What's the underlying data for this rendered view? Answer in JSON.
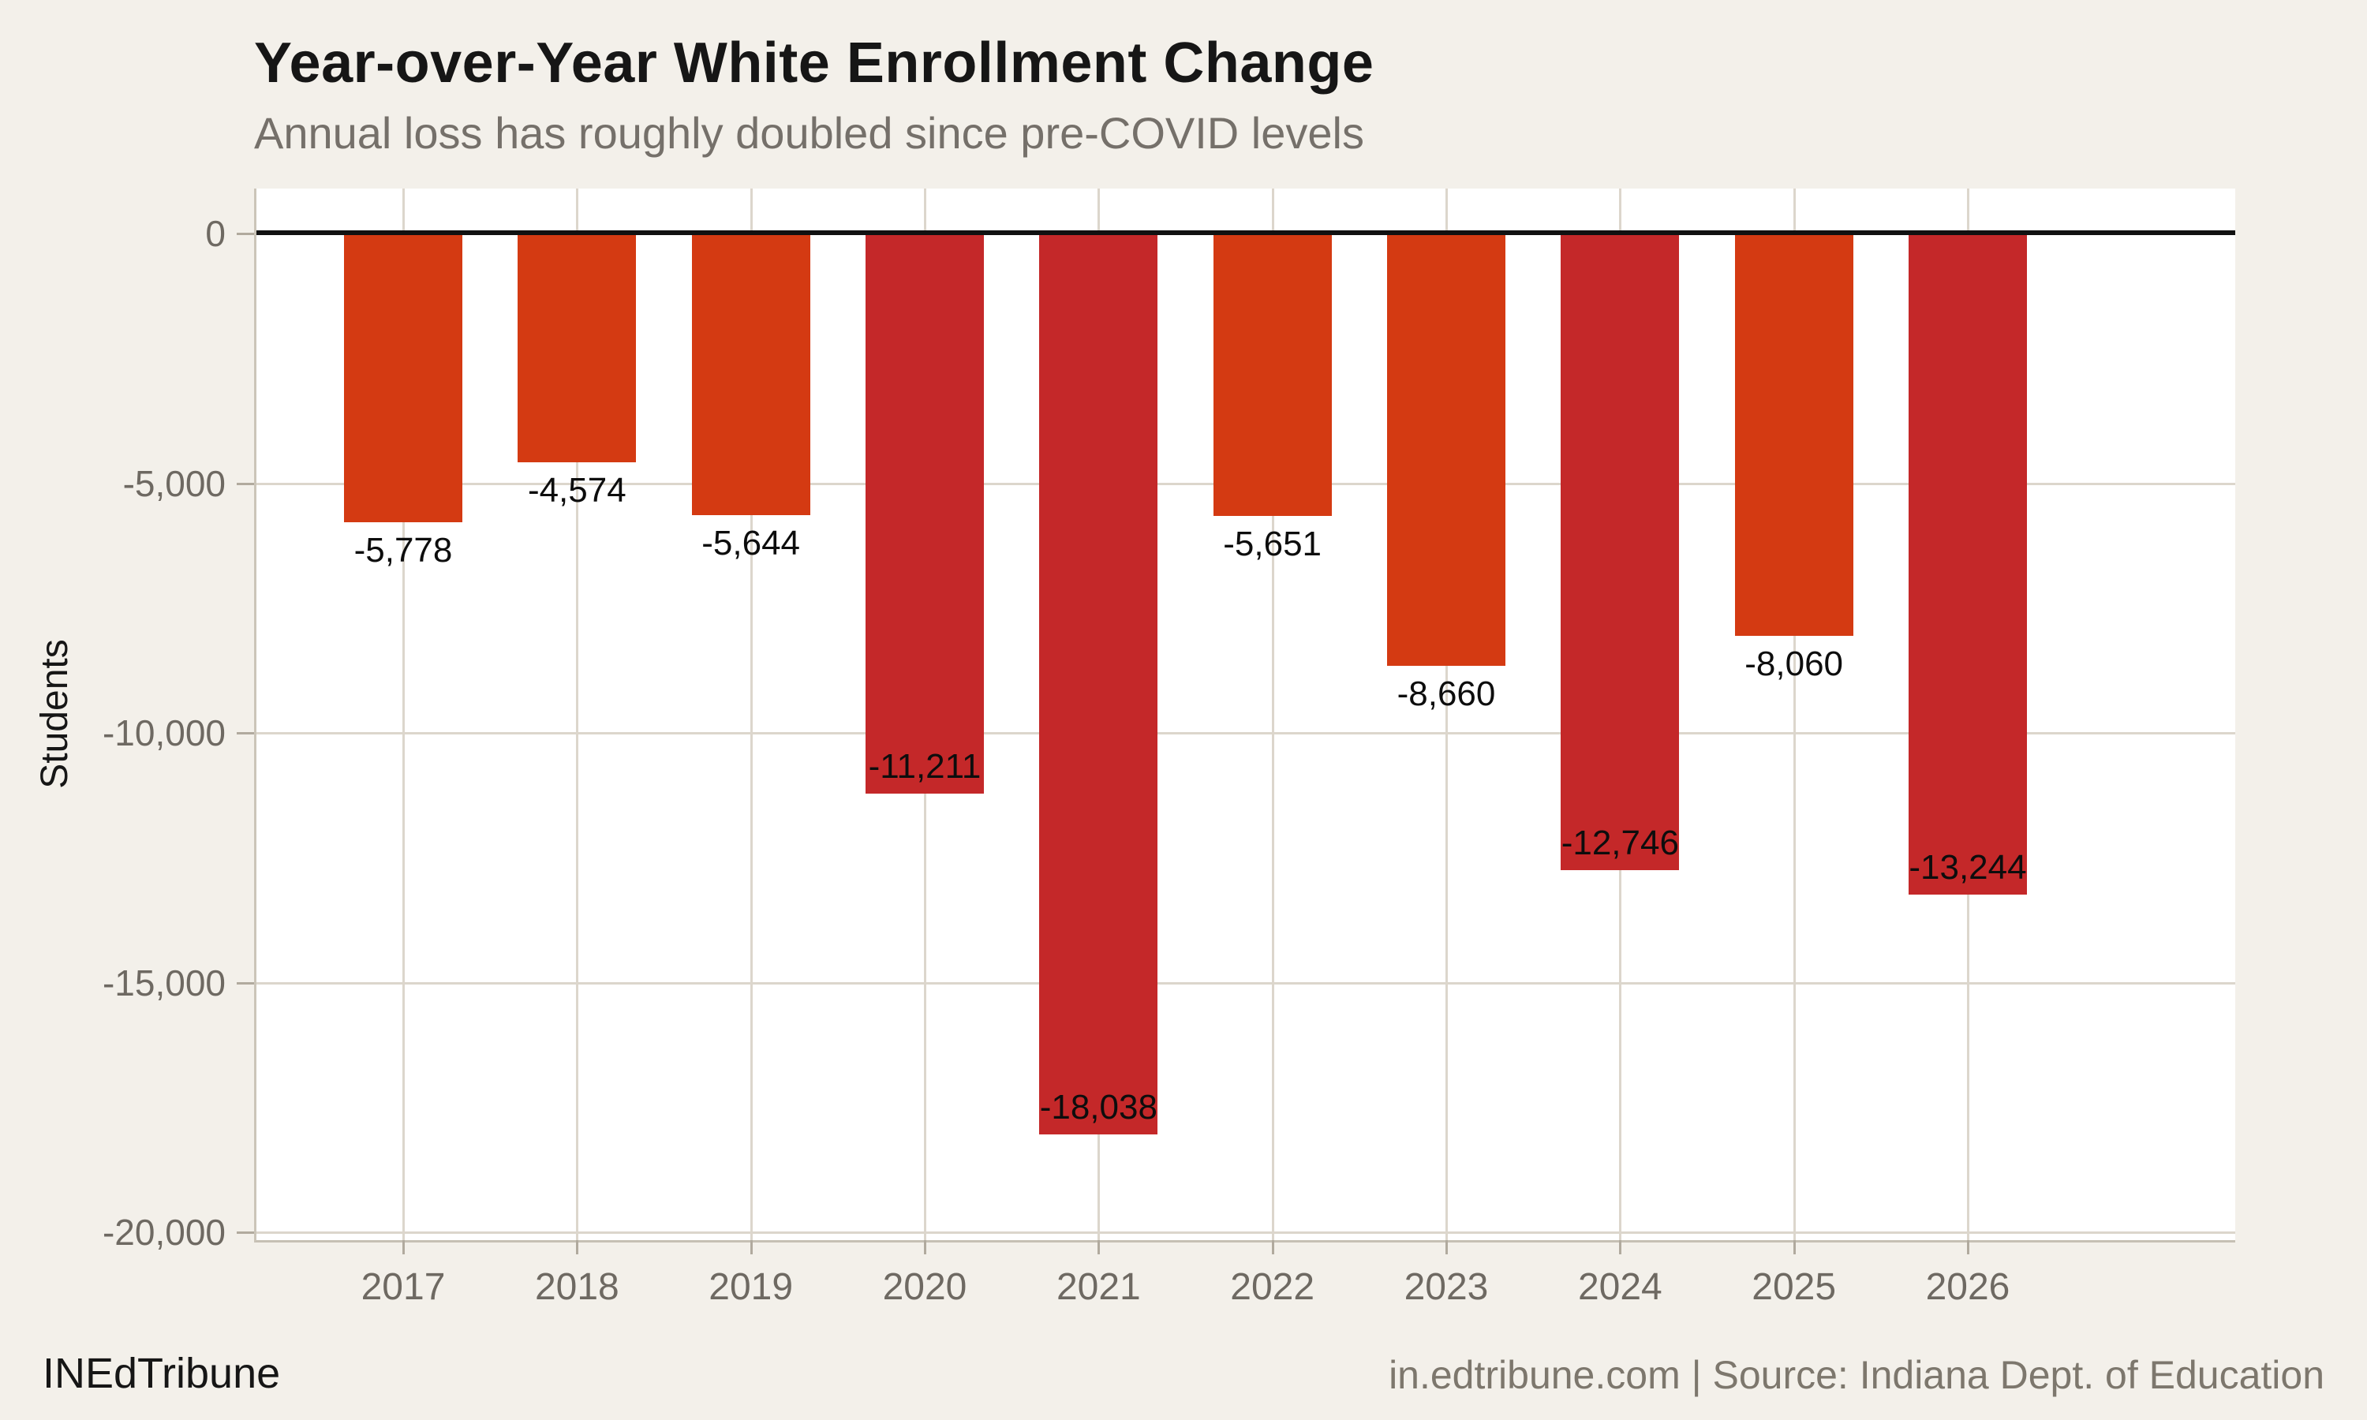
{
  "page": {
    "background": "#f3f0ea",
    "plot_background": "#ffffff"
  },
  "header": {
    "title": "Year-over-Year White Enrollment Change",
    "subtitle": "Annual loss has roughly doubled since pre-COVID levels"
  },
  "footer": {
    "brand": "INEdTribune",
    "attribution": "in.edtribune.com | Source: Indiana Dept. of Education"
  },
  "chart_data": {
    "type": "bar",
    "title": "Year-over-Year White Enrollment Change",
    "subtitle": "Annual loss has roughly doubled since pre-COVID levels",
    "xlabel": "",
    "ylabel": "Students",
    "ylim": [
      -20500,
      900
    ],
    "grid": true,
    "legend": false,
    "zero_line": true,
    "categories": [
      "2017",
      "2018",
      "2019",
      "2020",
      "2021",
      "2022",
      "2023",
      "2024",
      "2025",
      "2026"
    ],
    "values": [
      -5778,
      -4574,
      -5644,
      -11211,
      -18038,
      -5651,
      -8660,
      -12746,
      -8060,
      -13244
    ],
    "yticks": [
      {
        "value": 0,
        "label": "0"
      },
      {
        "value": -5000,
        "label": "-5,000"
      },
      {
        "value": -10000,
        "label": "-10,000"
      },
      {
        "value": -15000,
        "label": "-15,000"
      },
      {
        "value": -20000,
        "label": "-20,000"
      }
    ],
    "colors": {
      "bar_moderate": "#d43a12",
      "bar_severe": "#c42829",
      "grid": "#dcd6cc",
      "zero_line": "#111111",
      "axis_text": "#6e6962"
    },
    "bars": [
      {
        "year": "2017",
        "value": -5778,
        "label": "-5,778",
        "color": "#d43a12",
        "label_position": "below"
      },
      {
        "year": "2018",
        "value": -4574,
        "label": "-4,574",
        "color": "#d43a12",
        "label_position": "below"
      },
      {
        "year": "2019",
        "value": -5644,
        "label": "-5,644",
        "color": "#d43a12",
        "label_position": "below"
      },
      {
        "year": "2020",
        "value": -11211,
        "label": "-11,211",
        "color": "#c42829",
        "label_position": "inside"
      },
      {
        "year": "2021",
        "value": -18038,
        "label": "-18,038",
        "color": "#c42829",
        "label_position": "inside"
      },
      {
        "year": "2022",
        "value": -5651,
        "label": "-5,651",
        "color": "#d43a12",
        "label_position": "below"
      },
      {
        "year": "2023",
        "value": -8660,
        "label": "-8,660",
        "color": "#d43a12",
        "label_position": "below"
      },
      {
        "year": "2024",
        "value": -12746,
        "label": "-12,746",
        "color": "#c42829",
        "label_position": "inside"
      },
      {
        "year": "2025",
        "value": -8060,
        "label": "-8,060",
        "color": "#d43a12",
        "label_position": "below"
      },
      {
        "year": "2026",
        "value": -13244,
        "label": "-13,244",
        "color": "#c42829",
        "label_position": "inside"
      }
    ]
  }
}
